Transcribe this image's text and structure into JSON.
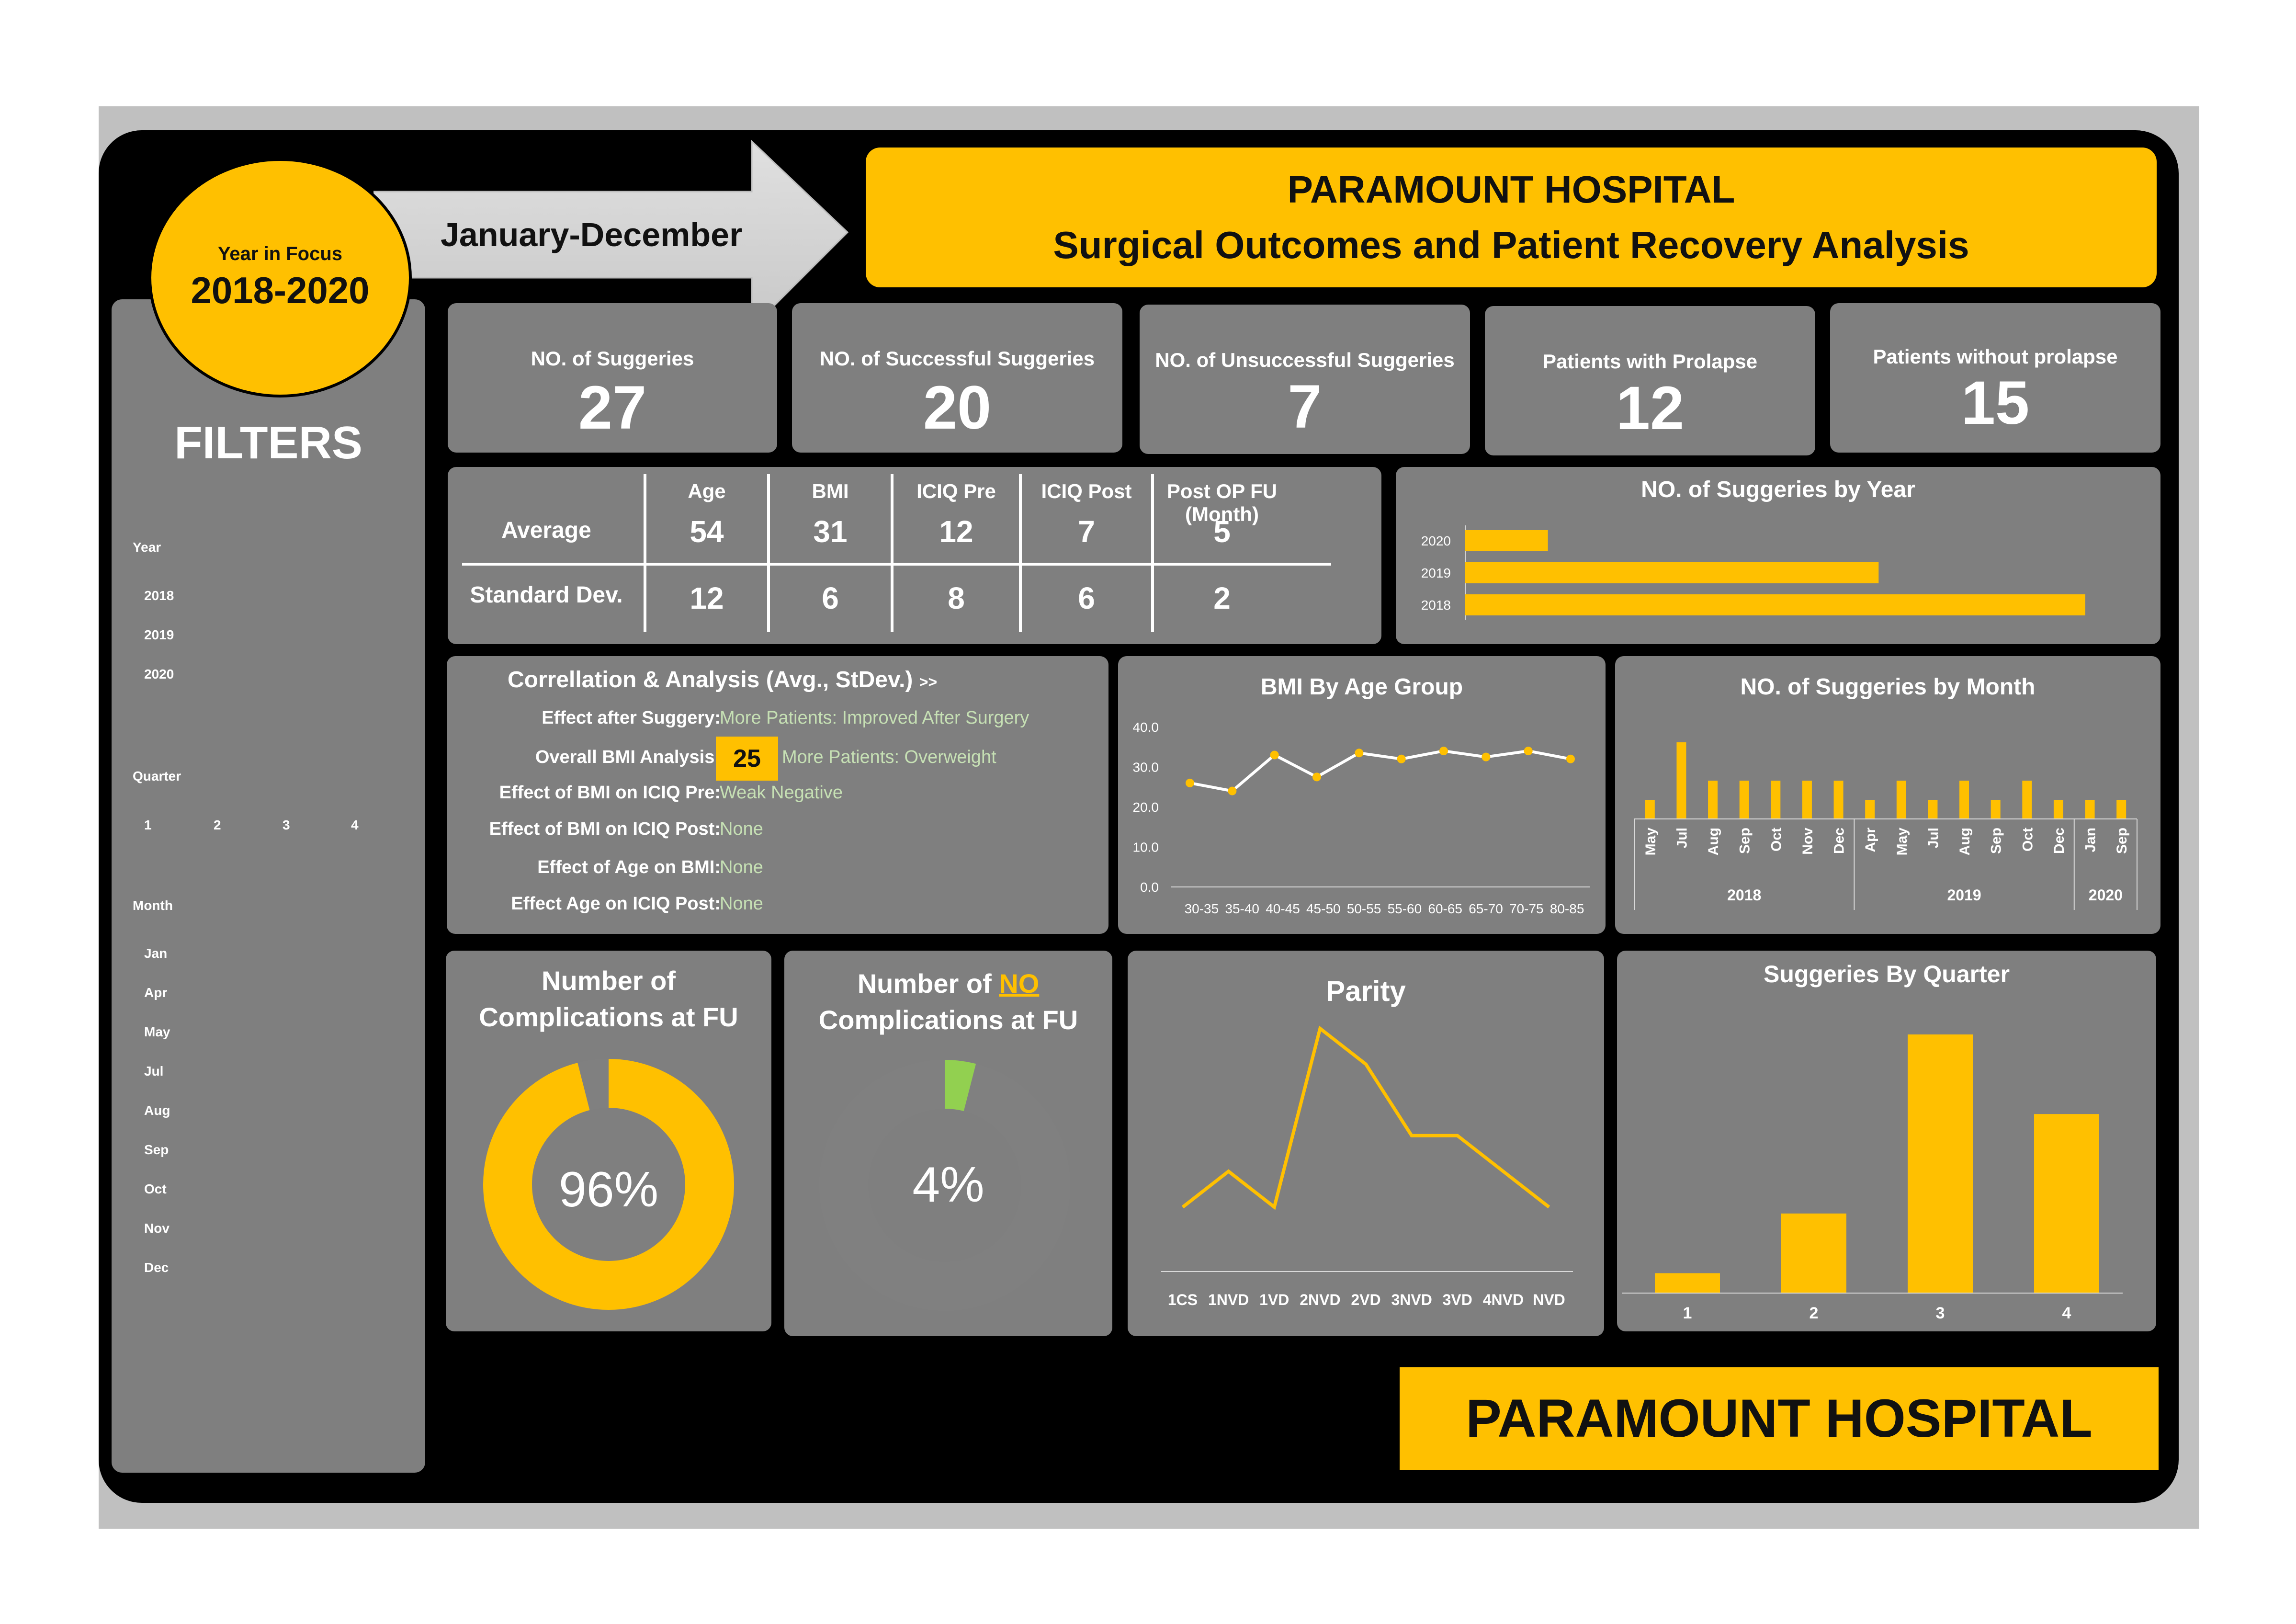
{
  "header": {
    "year_focus_label": "Year in Focus",
    "year_focus_value": "2018-2020",
    "period": "January-December",
    "title_line1": "PARAMOUNT HOSPITAL",
    "title_line2": "Surgical Outcomes and Patient Recovery Analysis"
  },
  "filters": {
    "title": "FILTERS",
    "year_label": "Year",
    "years": [
      "2018",
      "2019",
      "2020"
    ],
    "quarter_label": "Quarter",
    "quarters": [
      "1",
      "2",
      "3",
      "4"
    ],
    "month_label": "Month",
    "months": [
      "Jan",
      "Apr",
      "May",
      "Jul",
      "Aug",
      "Sep",
      "Oct",
      "Nov",
      "Dec"
    ]
  },
  "kpis": [
    {
      "label": "NO. of Suggeries",
      "value": "27"
    },
    {
      "label": "NO. of Successful Suggeries",
      "value": "20"
    },
    {
      "label": "NO. of Unsuccessful Suggeries",
      "value": "7"
    },
    {
      "label": "Patients with Prolapse",
      "value": "12"
    },
    {
      "label": "Patients without prolapse",
      "value": "15"
    }
  ],
  "stats_table": {
    "columns": [
      "Age",
      "BMI",
      "ICIQ Pre",
      "ICIQ Post",
      "Post OP FU (Month)"
    ],
    "rows": [
      {
        "label": "Average",
        "values": [
          "54",
          "31",
          "12",
          "7",
          "5"
        ]
      },
      {
        "label": "Standard Dev.",
        "values": [
          "12",
          "6",
          "8",
          "6",
          "2"
        ]
      }
    ]
  },
  "correlation": {
    "title": "Correllation & Analysis (Avg., StDev.)",
    "arrow": ">>",
    "highlight_value": "25",
    "rows": [
      {
        "label": "Effect after Suggery:",
        "value": "More Patients: Improved After Surgery"
      },
      {
        "label": "Overall BMI Analysis:",
        "value": "More Patients: Overweight"
      },
      {
        "label": "Effect of BMI on ICIQ Pre:",
        "value": "Weak Negative"
      },
      {
        "label": "Effect of BMI on ICIQ Post:",
        "value": "None"
      },
      {
        "label": "Effect of Age on BMI:",
        "value": "None"
      },
      {
        "label": "Effect Age on ICIQ Post:",
        "value": "None"
      }
    ]
  },
  "donuts": {
    "complications": {
      "title_line1": "Number of",
      "title_line2": "Complications at FU",
      "value": 0.96,
      "label": "96%"
    },
    "no_complications": {
      "title_pre": "Number of ",
      "title_emph": "NO",
      "title_line2": "Complications at FU",
      "value": 0.04,
      "label": "4%"
    }
  },
  "footer": {
    "brand": "PARAMOUNT HOSPITAL"
  },
  "colors": {
    "accent": "#FFC000",
    "panel": "#7f7f7f",
    "green": "#92D050",
    "positive_text": "#c6e0b4"
  },
  "chart_data": [
    {
      "id": "by_year",
      "type": "bar",
      "orientation": "horizontal",
      "title": "NO. of Suggeries by Year",
      "categories": [
        "2020",
        "2019",
        "2018"
      ],
      "values": [
        2,
        10,
        15
      ],
      "xlim": [
        0,
        15
      ]
    },
    {
      "id": "bmi_age",
      "type": "line",
      "title": "BMI By Age Group",
      "categories": [
        "30-35",
        "35-40",
        "40-45",
        "45-50",
        "50-55",
        "55-60",
        "60-65",
        "65-70",
        "70-75",
        "80-85"
      ],
      "values": [
        26,
        24,
        33,
        27.5,
        33.5,
        32,
        34,
        32.5,
        34,
        32
      ],
      "ylim": [
        0,
        40
      ],
      "yticks": [
        "0.0",
        "10.0",
        "20.0",
        "30.0",
        "40.0"
      ]
    },
    {
      "id": "by_month",
      "type": "bar",
      "title": "NO. of Suggeries by Month",
      "categories": [
        "May",
        "Jul",
        "Aug",
        "Sep",
        "Oct",
        "Nov",
        "Dec",
        "Apr",
        "May",
        "Jul",
        "Aug",
        "Sep",
        "Oct",
        "Dec",
        "Jan",
        "Sep"
      ],
      "groups": [
        {
          "label": "2018",
          "count": 7
        },
        {
          "label": "2019",
          "count": 7
        },
        {
          "label": "2020",
          "count": 2
        }
      ],
      "values": [
        1,
        4,
        2,
        2,
        2,
        2,
        2,
        1,
        2,
        1,
        2,
        1,
        2,
        1,
        1,
        1
      ],
      "ylim": [
        0,
        4
      ]
    },
    {
      "id": "parity",
      "type": "line",
      "title": "Parity",
      "categories": [
        "1CS",
        "1NVD",
        "1VD",
        "2NVD",
        "2VD",
        "3NVD",
        "3VD",
        "4NVD",
        "NVD"
      ],
      "values": [
        1,
        2,
        1,
        6,
        5,
        3,
        3,
        2,
        1
      ],
      "ylim": [
        0,
        7
      ]
    },
    {
      "id": "by_quarter",
      "type": "bar",
      "title": "Suggeries By Quarter",
      "categories": [
        "1",
        "2",
        "3",
        "4"
      ],
      "values": [
        1,
        4,
        13,
        9
      ],
      "ylim": [
        0,
        13
      ]
    }
  ]
}
